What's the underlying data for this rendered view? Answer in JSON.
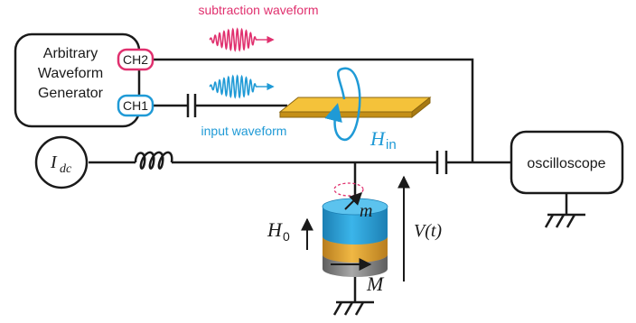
{
  "boxes": {
    "awg_line1": "Arbitrary",
    "awg_line2": "Waveform",
    "awg_line3": "Generator",
    "oscilloscope": "oscilloscope"
  },
  "channels": {
    "ch1": "CH1",
    "ch2": "CH2"
  },
  "waveforms": {
    "subtraction": "subtraction waveform",
    "input": "input waveform"
  },
  "symbols": {
    "current_main": "I",
    "current_sub": "dc",
    "field_in_main": "H",
    "field_in_sub": "in",
    "h0_main": "H",
    "h0_sub": "0",
    "vt": "V(t)",
    "free_layer": "m",
    "fixed_layer": "M"
  },
  "colors": {
    "subtraction": "#e0306e",
    "input": "#1f9ad6",
    "stripline": "#f0b323",
    "wire": "#1a1a1a",
    "mtj_top": "#29a8e0",
    "mtj_middle": "#e8a93a",
    "mtj_bottom": "#8a8a8a"
  }
}
